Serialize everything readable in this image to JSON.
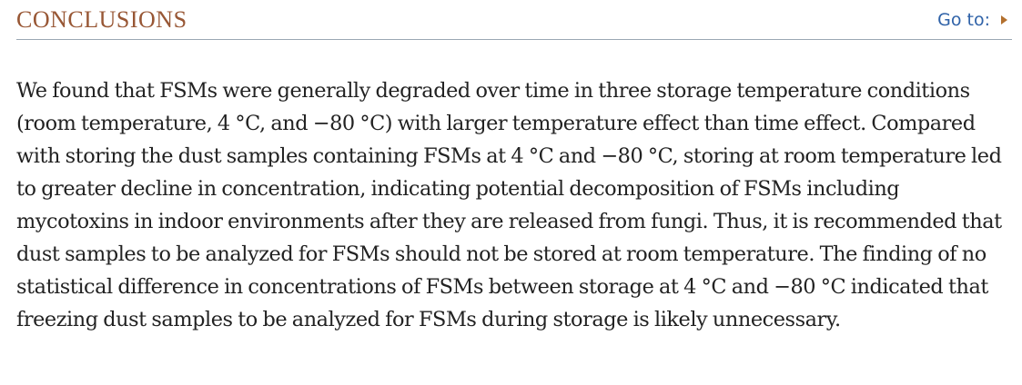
{
  "section": {
    "title": "CONCLUSIONS",
    "goto_label": "Go to:",
    "goto_icon": "triangle-right-icon",
    "accent_color": "#985735",
    "link_color": "#2f62a8",
    "paragraph": "We found that FSMs were generally degraded over time in three storage temperature conditions (room temperature, 4 °C, and −80 °C) with larger temperature effect than time effect. Compared with storing the dust samples containing FSMs at 4 °C and −80 °C, storing at room temperature led to greater decline in concentration, indicating potential decomposition of FSMs including mycotoxins in indoor environments after they are released from fungi. Thus, it is recommended that dust samples to be analyzed for FSMs should not be stored at room temperature. The finding of no statistical difference in concentrations of FSMs between storage at 4 °C and −80 °C indicated that freezing dust samples to be analyzed for FSMs during storage is likely unnecessary."
  }
}
